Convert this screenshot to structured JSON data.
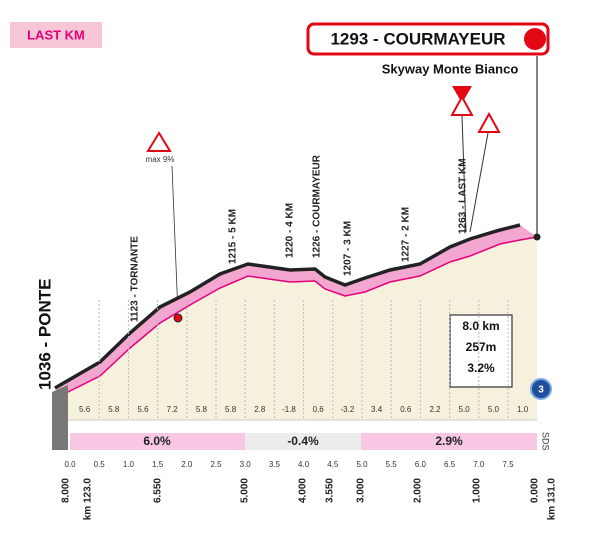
{
  "badge": "LAST KM",
  "finish": {
    "label": "1293 - COURMAYEUR",
    "subtitle": "Skyway Monte Bianco"
  },
  "warning": "max 9%",
  "points": [
    "1123 - TORNANTE",
    "1215 - 5 KM",
    "1220 - 4 KM",
    "1226 - COURMAYEUR",
    "1207 - 3 KM",
    "1227 - 2 KM",
    "1263 - LAST KM"
  ],
  "start": "1036 - PONTE",
  "summary": [
    "8.0 km",
    "257m",
    "3.2%"
  ],
  "road": {
    "number": "3",
    "code": "SDS"
  },
  "gradients": [
    "5.6",
    "5.8",
    "5.6",
    "7.2",
    "5.8",
    "5.8",
    "2.8",
    "-1.8",
    "0.6",
    "-3.2",
    "3.4",
    "0.6",
    "2.2",
    "5.0",
    "5.0",
    "1.0"
  ],
  "sections": [
    "6.0%",
    "-0.4%",
    "2.9%"
  ],
  "km_ticks": [
    "0.0",
    "0.5",
    "1.0",
    "1.5",
    "2.0",
    "2.5",
    "3.0",
    "3.5",
    "4.0",
    "4.5",
    "5.0",
    "5.5",
    "6.0",
    "6.5",
    "7.0",
    "7.5"
  ],
  "distances": [
    "8.000",
    "km 123.0",
    "6.550",
    "5.000",
    "4.000",
    "3.550",
    "3.000",
    "2.000",
    "1.000",
    "0.000",
    "km 131.0"
  ]
}
